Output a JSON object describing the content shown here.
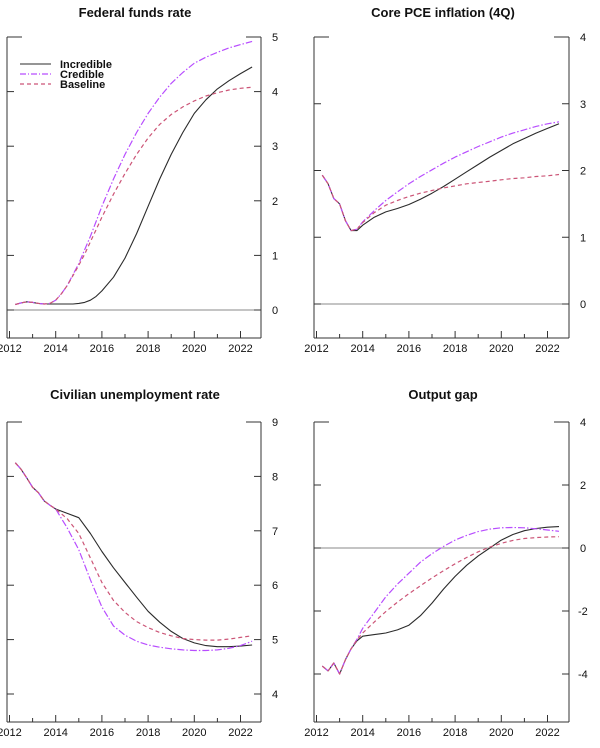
{
  "chart_data": [
    {
      "type": "line",
      "title": "Federal funds rate",
      "xlabel": "",
      "ylabel": "",
      "xlim": [
        2011.9,
        2022.85
      ],
      "ylim": [
        -0.5,
        5
      ],
      "x_ticks": [
        2012,
        2013,
        2014,
        2015,
        2016,
        2017,
        2018,
        2019,
        2020,
        2021,
        2022
      ],
      "x_tick_labels": [
        "2012",
        "2014",
        "2016",
        "2018",
        "2020",
        "2022"
      ],
      "y_ticks": [
        0,
        1,
        2,
        3,
        4,
        5
      ],
      "y_tick_labels": [
        "0",
        "1",
        "2",
        "3",
        "4",
        "5"
      ],
      "zero_line": 0,
      "legend": {
        "position": "top-left",
        "entries": [
          "Incredible",
          "Credible",
          "Baseline"
        ]
      },
      "x": [
        2012.25,
        2012.5,
        2012.75,
        2013.0,
        2013.25,
        2013.5,
        2013.75,
        2014.0,
        2014.25,
        2014.5,
        2014.75,
        2015.0,
        2015.25,
        2015.5,
        2015.75,
        2016.0,
        2016.5,
        2017.0,
        2017.5,
        2018.0,
        2018.5,
        2019.0,
        2019.5,
        2020.0,
        2020.5,
        2021.0,
        2021.5,
        2022.0,
        2022.5
      ],
      "series": [
        {
          "name": "Incredible",
          "values": [
            0.1,
            0.13,
            0.15,
            0.14,
            0.12,
            0.11,
            0.11,
            0.11,
            0.11,
            0.11,
            0.11,
            0.12,
            0.14,
            0.18,
            0.25,
            0.35,
            0.6,
            0.95,
            1.4,
            1.9,
            2.4,
            2.85,
            3.25,
            3.6,
            3.85,
            4.05,
            4.2,
            4.33,
            4.45
          ]
        },
        {
          "name": "Credible",
          "values": [
            0.1,
            0.13,
            0.15,
            0.14,
            0.12,
            0.11,
            0.12,
            0.18,
            0.3,
            0.45,
            0.65,
            0.85,
            1.1,
            1.35,
            1.62,
            1.9,
            2.4,
            2.85,
            3.25,
            3.6,
            3.9,
            4.15,
            4.35,
            4.52,
            4.63,
            4.72,
            4.8,
            4.86,
            4.92
          ]
        },
        {
          "name": "Baseline",
          "values": [
            0.1,
            0.13,
            0.15,
            0.14,
            0.12,
            0.11,
            0.12,
            0.18,
            0.3,
            0.45,
            0.63,
            0.82,
            1.02,
            1.25,
            1.47,
            1.7,
            2.12,
            2.5,
            2.85,
            3.15,
            3.4,
            3.58,
            3.72,
            3.83,
            3.92,
            3.98,
            4.03,
            4.06,
            4.08
          ]
        }
      ]
    },
    {
      "type": "line",
      "title": "Core PCE inflation (4Q)",
      "xlabel": "",
      "ylabel": "",
      "xlim": [
        2011.9,
        2022.85
      ],
      "ylim": [
        -0.5,
        4
      ],
      "x_ticks": [
        2012,
        2013,
        2014,
        2015,
        2016,
        2017,
        2018,
        2019,
        2020,
        2021,
        2022
      ],
      "x_tick_labels": [
        "2012",
        "2014",
        "2016",
        "2018",
        "2020",
        "2022"
      ],
      "y_ticks": [
        0,
        1,
        2,
        3,
        4
      ],
      "y_tick_labels": [
        "0",
        "1",
        "2",
        "3",
        "4"
      ],
      "zero_line": 0,
      "x": [
        2012.25,
        2012.5,
        2012.75,
        2013.0,
        2013.25,
        2013.5,
        2013.75,
        2014.0,
        2014.5,
        2015.0,
        2015.5,
        2016.0,
        2016.5,
        2017.0,
        2017.5,
        2018.0,
        2018.5,
        2019.0,
        2019.5,
        2020.0,
        2020.5,
        2021.0,
        2021.5,
        2022.0,
        2022.5
      ],
      "series": [
        {
          "name": "Incredible",
          "values": [
            1.93,
            1.8,
            1.58,
            1.5,
            1.25,
            1.1,
            1.1,
            1.18,
            1.3,
            1.38,
            1.43,
            1.49,
            1.57,
            1.66,
            1.76,
            1.87,
            1.98,
            2.09,
            2.2,
            2.3,
            2.4,
            2.48,
            2.56,
            2.63,
            2.7
          ]
        },
        {
          "name": "Credible",
          "values": [
            1.93,
            1.8,
            1.58,
            1.5,
            1.25,
            1.1,
            1.12,
            1.23,
            1.4,
            1.55,
            1.68,
            1.8,
            1.91,
            2.01,
            2.11,
            2.2,
            2.28,
            2.36,
            2.43,
            2.5,
            2.56,
            2.61,
            2.66,
            2.7,
            2.73
          ]
        },
        {
          "name": "Baseline",
          "values": [
            1.93,
            1.8,
            1.58,
            1.5,
            1.25,
            1.1,
            1.12,
            1.22,
            1.37,
            1.48,
            1.55,
            1.61,
            1.66,
            1.7,
            1.74,
            1.77,
            1.8,
            1.82,
            1.84,
            1.86,
            1.88,
            1.89,
            1.91,
            1.92,
            1.94
          ]
        }
      ]
    },
    {
      "type": "line",
      "title": "Civilian unemployment rate",
      "xlabel": "",
      "ylabel": "",
      "xlim": [
        2011.9,
        2022.85
      ],
      "ylim": [
        3.5,
        9
      ],
      "x_ticks": [
        2012,
        2013,
        2014,
        2015,
        2016,
        2017,
        2018,
        2019,
        2020,
        2021,
        2022
      ],
      "x_tick_labels": [
        "2012",
        "2014",
        "2016",
        "2018",
        "2020",
        "2022"
      ],
      "y_ticks": [
        4,
        5,
        6,
        7,
        8,
        9
      ],
      "y_tick_labels": [
        "4",
        "5",
        "6",
        "7",
        "8",
        "9"
      ],
      "x": [
        2012.25,
        2012.5,
        2012.75,
        2013.0,
        2013.25,
        2013.5,
        2013.75,
        2014.0,
        2014.5,
        2015.0,
        2015.5,
        2016.0,
        2016.5,
        2017.0,
        2017.5,
        2018.0,
        2018.5,
        2019.0,
        2019.5,
        2020.0,
        2020.5,
        2021.0,
        2021.5,
        2022.0,
        2022.5
      ],
      "series": [
        {
          "name": "Incredible",
          "values": [
            8.25,
            8.13,
            7.97,
            7.8,
            7.7,
            7.55,
            7.47,
            7.4,
            7.32,
            7.24,
            6.95,
            6.62,
            6.32,
            6.05,
            5.78,
            5.52,
            5.32,
            5.15,
            5.02,
            4.94,
            4.89,
            4.87,
            4.87,
            4.88,
            4.9
          ]
        },
        {
          "name": "Credible",
          "values": [
            8.25,
            8.13,
            7.97,
            7.8,
            7.7,
            7.55,
            7.47,
            7.4,
            7.05,
            6.65,
            6.1,
            5.6,
            5.25,
            5.08,
            4.97,
            4.9,
            4.86,
            4.83,
            4.81,
            4.8,
            4.8,
            4.81,
            4.84,
            4.89,
            4.97
          ]
        },
        {
          "name": "Baseline",
          "values": [
            8.25,
            8.13,
            7.97,
            7.8,
            7.7,
            7.55,
            7.47,
            7.4,
            7.22,
            6.95,
            6.5,
            6.05,
            5.72,
            5.5,
            5.33,
            5.22,
            5.13,
            5.07,
            5.02,
            5.0,
            4.99,
            4.99,
            5.01,
            5.04,
            5.07
          ]
        }
      ]
    },
    {
      "type": "line",
      "title": "Output gap",
      "xlabel": "",
      "ylabel": "",
      "xlim": [
        2011.9,
        2022.85
      ],
      "ylim": [
        -5.5,
        4
      ],
      "x_ticks": [
        2012,
        2013,
        2014,
        2015,
        2016,
        2017,
        2018,
        2019,
        2020,
        2021,
        2022
      ],
      "x_tick_labels": [
        "2012",
        "2014",
        "2016",
        "2018",
        "2020",
        "2022"
      ],
      "y_ticks": [
        -4,
        -2,
        0,
        2,
        4
      ],
      "y_tick_labels": [
        "-4",
        "-2",
        "0",
        "2",
        "4"
      ],
      "zero_line": 0,
      "x": [
        2012.25,
        2012.5,
        2012.75,
        2013.0,
        2013.25,
        2013.5,
        2013.75,
        2014.0,
        2014.5,
        2015.0,
        2015.5,
        2016.0,
        2016.5,
        2017.0,
        2017.5,
        2018.0,
        2018.5,
        2019.0,
        2019.5,
        2020.0,
        2020.5,
        2021.0,
        2021.5,
        2022.0,
        2022.5
      ],
      "series": [
        {
          "name": "Incredible",
          "values": [
            -3.75,
            -3.9,
            -3.65,
            -4.0,
            -3.55,
            -3.2,
            -2.95,
            -2.8,
            -2.75,
            -2.7,
            -2.6,
            -2.45,
            -2.15,
            -1.75,
            -1.3,
            -0.9,
            -0.55,
            -0.25,
            0.0,
            0.25,
            0.43,
            0.55,
            0.62,
            0.66,
            0.68
          ]
        },
        {
          "name": "Credible",
          "values": [
            -3.75,
            -3.9,
            -3.65,
            -4.0,
            -3.55,
            -3.2,
            -2.9,
            -2.55,
            -2.05,
            -1.55,
            -1.15,
            -0.8,
            -0.45,
            -0.18,
            0.05,
            0.25,
            0.4,
            0.52,
            0.6,
            0.64,
            0.65,
            0.64,
            0.61,
            0.57,
            0.53
          ]
        },
        {
          "name": "Baseline",
          "values": [
            -3.75,
            -3.9,
            -3.65,
            -4.0,
            -3.55,
            -3.2,
            -2.92,
            -2.7,
            -2.35,
            -2.02,
            -1.72,
            -1.45,
            -1.2,
            -0.95,
            -0.72,
            -0.5,
            -0.3,
            -0.12,
            0.03,
            0.15,
            0.24,
            0.3,
            0.33,
            0.35,
            0.36
          ]
        }
      ]
    }
  ],
  "styles": {
    "Incredible": {
      "color": "#2b2b2b",
      "dash": "solid"
    },
    "Credible": {
      "color": "#b84dff",
      "dash": "dashdot"
    },
    "Baseline": {
      "color": "#cc5577",
      "dash": "dashed"
    }
  }
}
